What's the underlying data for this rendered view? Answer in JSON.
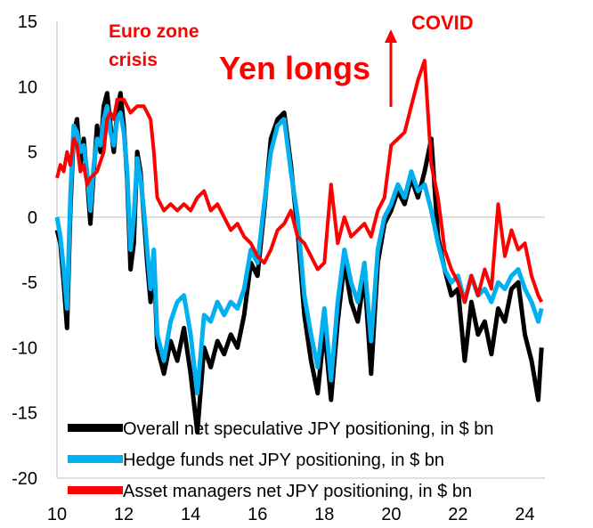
{
  "chart_data": {
    "type": "line",
    "xlim": [
      10,
      24.6
    ],
    "ylim": [
      -20,
      15
    ],
    "xticks": [
      "10",
      "12",
      "14",
      "16",
      "18",
      "20",
      "22",
      "24"
    ],
    "yticks": [
      "15",
      "10",
      "5",
      "0",
      "-5",
      "-10",
      "-15",
      "-20"
    ],
    "grid": false,
    "legend_position": "bottom",
    "annotations": {
      "euro_zone_line1": "Euro zone",
      "euro_zone_line2": "crisis",
      "covid": "COVID",
      "yen_longs": "Yen longs"
    },
    "series": [
      {
        "name": "Overall net speculative JPY positioning, in $ bn",
        "color": "#000000",
        "points": [
          [
            10.0,
            -1.0
          ],
          [
            10.1,
            -2.0
          ],
          [
            10.2,
            -5.0
          ],
          [
            10.3,
            -8.5
          ],
          [
            10.4,
            0.5
          ],
          [
            10.5,
            6.5
          ],
          [
            10.6,
            7.5
          ],
          [
            10.7,
            4.0
          ],
          [
            10.8,
            6.0
          ],
          [
            10.9,
            3.0
          ],
          [
            11.0,
            -0.5
          ],
          [
            11.1,
            3.5
          ],
          [
            11.2,
            7.0
          ],
          [
            11.3,
            5.0
          ],
          [
            11.4,
            8.5
          ],
          [
            11.5,
            9.5
          ],
          [
            11.6,
            7.0
          ],
          [
            11.7,
            5.0
          ],
          [
            11.8,
            8.0
          ],
          [
            11.9,
            9.5
          ],
          [
            12.0,
            7.0
          ],
          [
            12.1,
            3.0
          ],
          [
            12.2,
            -4.0
          ],
          [
            12.3,
            -2.0
          ],
          [
            12.4,
            5.0
          ],
          [
            12.5,
            3.5
          ],
          [
            12.6,
            0.0
          ],
          [
            12.7,
            -3.5
          ],
          [
            12.8,
            -6.5
          ],
          [
            12.9,
            -3.0
          ],
          [
            13.0,
            -10.0
          ],
          [
            13.2,
            -12.0
          ],
          [
            13.4,
            -9.5
          ],
          [
            13.6,
            -11.0
          ],
          [
            13.8,
            -8.5
          ],
          [
            14.0,
            -12.0
          ],
          [
            14.2,
            -16.5
          ],
          [
            14.4,
            -10.0
          ],
          [
            14.6,
            -11.5
          ],
          [
            14.8,
            -9.5
          ],
          [
            15.0,
            -10.5
          ],
          [
            15.2,
            -9.0
          ],
          [
            15.4,
            -10.0
          ],
          [
            15.6,
            -7.5
          ],
          [
            15.8,
            -3.5
          ],
          [
            16.0,
            -4.5
          ],
          [
            16.2,
            0.5
          ],
          [
            16.4,
            6.0
          ],
          [
            16.6,
            7.5
          ],
          [
            16.8,
            8.0
          ],
          [
            17.0,
            4.0
          ],
          [
            17.2,
            -1.0
          ],
          [
            17.4,
            -7.5
          ],
          [
            17.6,
            -11.0
          ],
          [
            17.8,
            -13.5
          ],
          [
            18.0,
            -8.5
          ],
          [
            18.2,
            -14.0
          ],
          [
            18.4,
            -8.0
          ],
          [
            18.6,
            -3.5
          ],
          [
            18.8,
            -6.5
          ],
          [
            19.0,
            -8.0
          ],
          [
            19.2,
            -4.5
          ],
          [
            19.4,
            -12.0
          ],
          [
            19.6,
            -3.5
          ],
          [
            19.8,
            -0.5
          ],
          [
            20.0,
            0.5
          ],
          [
            20.2,
            2.0
          ],
          [
            20.4,
            1.0
          ],
          [
            20.6,
            3.0
          ],
          [
            20.8,
            1.5
          ],
          [
            21.0,
            3.5
          ],
          [
            21.2,
            6.0
          ],
          [
            21.4,
            -1.5
          ],
          [
            21.6,
            -4.0
          ],
          [
            21.8,
            -6.0
          ],
          [
            22.0,
            -5.5
          ],
          [
            22.2,
            -11.0
          ],
          [
            22.4,
            -6.5
          ],
          [
            22.6,
            -9.0
          ],
          [
            22.8,
            -8.0
          ],
          [
            23.0,
            -10.5
          ],
          [
            23.2,
            -7.0
          ],
          [
            23.4,
            -8.0
          ],
          [
            23.6,
            -5.5
          ],
          [
            23.8,
            -5.0
          ],
          [
            24.0,
            -9.0
          ],
          [
            24.2,
            -11.0
          ],
          [
            24.4,
            -14.0
          ],
          [
            24.5,
            -10.0
          ]
        ]
      },
      {
        "name": "Hedge funds net JPY positioning, in $ bn",
        "color": "#00b0f0",
        "points": [
          [
            10.0,
            0.0
          ],
          [
            10.1,
            -1.5
          ],
          [
            10.2,
            -4.0
          ],
          [
            10.3,
            -7.0
          ],
          [
            10.4,
            1.5
          ],
          [
            10.5,
            7.0
          ],
          [
            10.6,
            6.5
          ],
          [
            10.7,
            5.0
          ],
          [
            10.8,
            5.5
          ],
          [
            10.9,
            3.5
          ],
          [
            11.0,
            0.5
          ],
          [
            11.1,
            4.0
          ],
          [
            11.2,
            6.0
          ],
          [
            11.3,
            5.5
          ],
          [
            11.4,
            7.5
          ],
          [
            11.5,
            8.5
          ],
          [
            11.6,
            6.5
          ],
          [
            11.7,
            5.5
          ],
          [
            11.8,
            7.5
          ],
          [
            11.9,
            8.0
          ],
          [
            12.0,
            6.5
          ],
          [
            12.1,
            3.5
          ],
          [
            12.2,
            -2.5
          ],
          [
            12.3,
            0.0
          ],
          [
            12.4,
            4.5
          ],
          [
            12.5,
            3.0
          ],
          [
            12.6,
            0.5
          ],
          [
            12.7,
            -2.5
          ],
          [
            12.8,
            -5.5
          ],
          [
            12.9,
            -2.5
          ],
          [
            13.0,
            -9.0
          ],
          [
            13.2,
            -11.0
          ],
          [
            13.4,
            -8.0
          ],
          [
            13.6,
            -6.5
          ],
          [
            13.8,
            -6.0
          ],
          [
            14.0,
            -9.0
          ],
          [
            14.2,
            -13.5
          ],
          [
            14.4,
            -7.5
          ],
          [
            14.6,
            -8.0
          ],
          [
            14.8,
            -6.5
          ],
          [
            15.0,
            -7.5
          ],
          [
            15.2,
            -6.5
          ],
          [
            15.4,
            -7.0
          ],
          [
            15.6,
            -5.5
          ],
          [
            15.8,
            -2.5
          ],
          [
            16.0,
            -3.5
          ],
          [
            16.2,
            1.0
          ],
          [
            16.4,
            5.0
          ],
          [
            16.6,
            7.0
          ],
          [
            16.8,
            7.5
          ],
          [
            17.0,
            3.5
          ],
          [
            17.2,
            0.0
          ],
          [
            17.4,
            -6.0
          ],
          [
            17.6,
            -9.0
          ],
          [
            17.8,
            -11.5
          ],
          [
            18.0,
            -7.0
          ],
          [
            18.2,
            -12.5
          ],
          [
            18.4,
            -6.5
          ],
          [
            18.6,
            -2.5
          ],
          [
            18.8,
            -5.0
          ],
          [
            19.0,
            -6.5
          ],
          [
            19.2,
            -3.5
          ],
          [
            19.4,
            -9.5
          ],
          [
            19.6,
            -2.5
          ],
          [
            19.8,
            0.0
          ],
          [
            20.0,
            1.0
          ],
          [
            20.2,
            2.5
          ],
          [
            20.4,
            1.5
          ],
          [
            20.6,
            3.5
          ],
          [
            20.8,
            2.0
          ],
          [
            21.0,
            2.5
          ],
          [
            21.2,
            0.5
          ],
          [
            21.4,
            -2.0
          ],
          [
            21.6,
            -4.0
          ],
          [
            21.8,
            -5.0
          ],
          [
            22.0,
            -4.5
          ],
          [
            22.2,
            -6.5
          ],
          [
            22.4,
            -4.5
          ],
          [
            22.6,
            -6.0
          ],
          [
            22.8,
            -5.5
          ],
          [
            23.0,
            -6.5
          ],
          [
            23.2,
            -5.0
          ],
          [
            23.4,
            -5.5
          ],
          [
            23.6,
            -4.5
          ],
          [
            23.8,
            -4.0
          ],
          [
            24.0,
            -5.5
          ],
          [
            24.2,
            -6.5
          ],
          [
            24.4,
            -8.0
          ],
          [
            24.5,
            -7.0
          ]
        ]
      },
      {
        "name": "Asset managers net JPY positioning, in $ bn",
        "color": "#ff0000",
        "points": [
          [
            10.0,
            3.0
          ],
          [
            10.1,
            4.0
          ],
          [
            10.2,
            3.5
          ],
          [
            10.3,
            5.0
          ],
          [
            10.4,
            4.0
          ],
          [
            10.5,
            6.0
          ],
          [
            10.6,
            5.5
          ],
          [
            10.7,
            3.5
          ],
          [
            10.8,
            4.0
          ],
          [
            10.9,
            2.5
          ],
          [
            11.0,
            3.0
          ],
          [
            11.2,
            3.5
          ],
          [
            11.4,
            5.0
          ],
          [
            11.5,
            7.5
          ],
          [
            11.6,
            8.0
          ],
          [
            11.7,
            7.5
          ],
          [
            11.8,
            9.0
          ],
          [
            12.0,
            9.0
          ],
          [
            12.2,
            8.0
          ],
          [
            12.4,
            8.5
          ],
          [
            12.6,
            8.5
          ],
          [
            12.8,
            7.5
          ],
          [
            12.9,
            5.0
          ],
          [
            13.0,
            1.5
          ],
          [
            13.2,
            0.5
          ],
          [
            13.4,
            1.0
          ],
          [
            13.6,
            0.5
          ],
          [
            13.8,
            1.0
          ],
          [
            14.0,
            0.5
          ],
          [
            14.2,
            1.5
          ],
          [
            14.4,
            2.0
          ],
          [
            14.6,
            0.5
          ],
          [
            14.8,
            1.0
          ],
          [
            15.0,
            0.0
          ],
          [
            15.2,
            -1.0
          ],
          [
            15.4,
            -0.5
          ],
          [
            15.6,
            -1.5
          ],
          [
            15.8,
            -2.0
          ],
          [
            16.0,
            -3.0
          ],
          [
            16.2,
            -3.5
          ],
          [
            16.4,
            -2.5
          ],
          [
            16.6,
            -1.0
          ],
          [
            16.8,
            -0.5
          ],
          [
            17.0,
            0.5
          ],
          [
            17.2,
            -1.5
          ],
          [
            17.4,
            -2.0
          ],
          [
            17.6,
            -3.0
          ],
          [
            17.8,
            -4.0
          ],
          [
            18.0,
            -3.5
          ],
          [
            18.2,
            2.5
          ],
          [
            18.4,
            -2.0
          ],
          [
            18.6,
            0.0
          ],
          [
            18.8,
            -1.5
          ],
          [
            19.0,
            -1.0
          ],
          [
            19.2,
            -0.5
          ],
          [
            19.4,
            -1.5
          ],
          [
            19.6,
            0.5
          ],
          [
            19.8,
            1.5
          ],
          [
            20.0,
            5.5
          ],
          [
            20.2,
            6.0
          ],
          [
            20.4,
            6.5
          ],
          [
            20.6,
            8.5
          ],
          [
            20.8,
            10.5
          ],
          [
            21.0,
            12.0
          ],
          [
            21.2,
            4.0
          ],
          [
            21.4,
            1.5
          ],
          [
            21.6,
            -2.5
          ],
          [
            21.8,
            -4.0
          ],
          [
            22.0,
            -5.0
          ],
          [
            22.2,
            -6.5
          ],
          [
            22.4,
            -4.5
          ],
          [
            22.6,
            -6.0
          ],
          [
            22.8,
            -4.0
          ],
          [
            23.0,
            -5.5
          ],
          [
            23.2,
            1.0
          ],
          [
            23.4,
            -3.0
          ],
          [
            23.6,
            -1.0
          ],
          [
            23.8,
            -2.5
          ],
          [
            24.0,
            -2.0
          ],
          [
            24.2,
            -4.5
          ],
          [
            24.4,
            -6.0
          ],
          [
            24.5,
            -6.5
          ]
        ]
      }
    ]
  }
}
